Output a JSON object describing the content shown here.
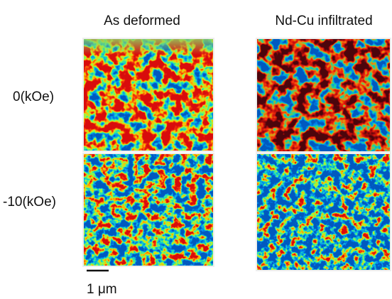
{
  "columns": [
    "As deformed",
    "Nd-Cu infiltrated"
  ],
  "rows": [
    "0(kOe)",
    "-10(kOe)"
  ],
  "scale_bar": "1 μm"
}
